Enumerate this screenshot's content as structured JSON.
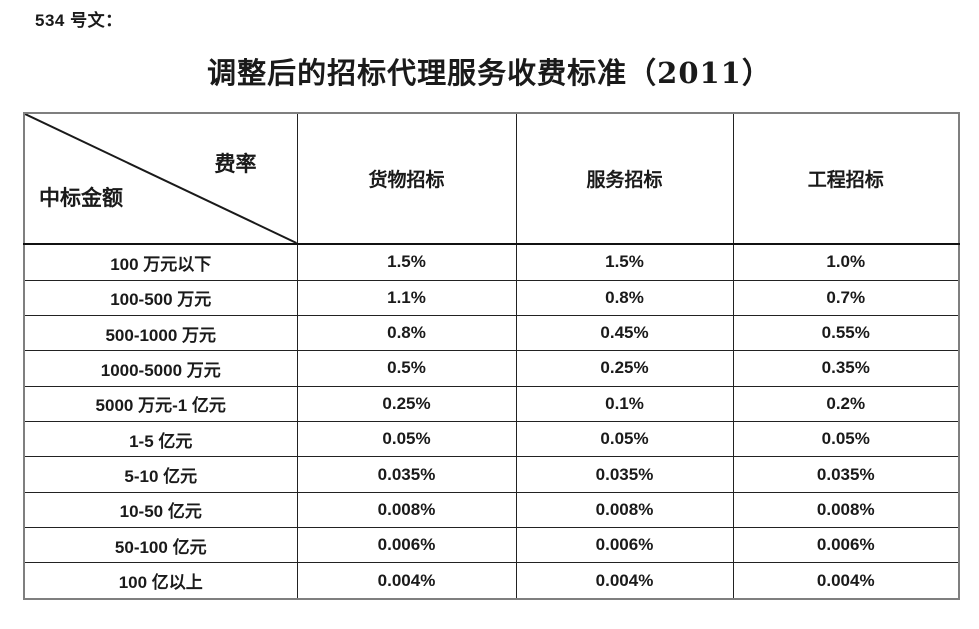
{
  "doc_label": "534 号文：",
  "title": "调整后的招标代理服务收费标准（2011）",
  "table": {
    "corner": {
      "top_right": "费率",
      "bottom_left": "中标金额"
    },
    "columns": [
      "货物招标",
      "服务招标",
      "工程招标"
    ],
    "rows": [
      {
        "label": "100 万元以下",
        "values": [
          "1.5%",
          "1.5%",
          "1.0%"
        ]
      },
      {
        "label": "100-500 万元",
        "values": [
          "1.1%",
          "0.8%",
          "0.7%"
        ]
      },
      {
        "label": "500-1000 万元",
        "values": [
          "0.8%",
          "0.45%",
          "0.55%"
        ]
      },
      {
        "label": "1000-5000 万元",
        "values": [
          "0.5%",
          "0.25%",
          "0.35%"
        ]
      },
      {
        "label": "5000 万元-1 亿元",
        "values": [
          "0.25%",
          "0.1%",
          "0.2%"
        ]
      },
      {
        "label": "1-5 亿元",
        "values": [
          "0.05%",
          "0.05%",
          "0.05%"
        ]
      },
      {
        "label": "5-10 亿元",
        "values": [
          "0.035%",
          "0.035%",
          "0.035%"
        ]
      },
      {
        "label": "10-50 亿元",
        "values": [
          "0.008%",
          "0.008%",
          "0.008%"
        ]
      },
      {
        "label": "50-100 亿元",
        "values": [
          "0.006%",
          "0.006%",
          "0.006%"
        ]
      },
      {
        "label": "100 亿以上",
        "values": [
          "0.004%",
          "0.004%",
          "0.004%"
        ]
      }
    ]
  },
  "colors": {
    "text": "#1a1a1a",
    "inner_border": "#222222",
    "outer_border": "#7f7f7f",
    "background": "#ffffff"
  }
}
